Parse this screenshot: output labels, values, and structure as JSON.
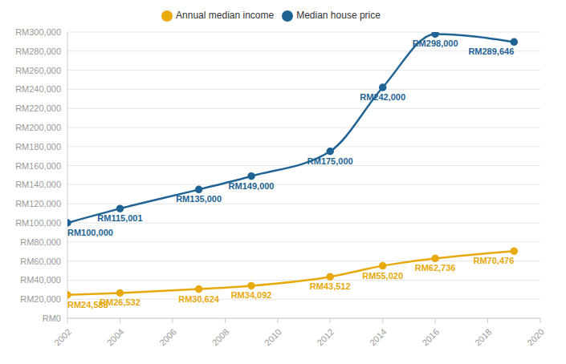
{
  "chart_data": {
    "type": "line",
    "x": [
      2002,
      2004,
      2007,
      2009,
      2012,
      2014,
      2016,
      2019
    ],
    "series": [
      {
        "name": "Median house price",
        "color": "#1f6394",
        "marker": "circle",
        "values": [
          100000,
          115001,
          135000,
          149000,
          175000,
          242000,
          298000,
          289646
        ],
        "value_labels": [
          "RM100,000",
          "RM115,001",
          "RM135,000",
          "RM149,000",
          "RM175,000",
          "RM242,000",
          "RM298,000",
          "RM289,646"
        ]
      },
      {
        "name": "Annual median income",
        "color": "#e8a90c",
        "marker": "circle",
        "values": [
          24588,
          26532,
          30624,
          34092,
          43512,
          55020,
          62736,
          70476
        ],
        "value_labels": [
          "RM24,588",
          "RM26,532",
          "RM30,624",
          "RM34,092",
          "RM43,512",
          "RM55,020",
          "RM62,736",
          "RM70,476"
        ]
      }
    ],
    "xlim": [
      2002,
      2020
    ],
    "xticks": [
      2002,
      2004,
      2006,
      2008,
      2010,
      2012,
      2014,
      2016,
      2018,
      2020
    ],
    "ylim": [
      0,
      300000
    ],
    "yticks": [
      {
        "value": 0,
        "label": "RM0"
      },
      {
        "value": 20000,
        "label": "RM20,000"
      },
      {
        "value": 40000,
        "label": "RM40,000"
      },
      {
        "value": 60000,
        "label": "RM60,000"
      },
      {
        "value": 80000,
        "label": "RM80,000"
      },
      {
        "value": 100000,
        "label": "RM100,000"
      },
      {
        "value": 120000,
        "label": "RM120,000"
      },
      {
        "value": 140000,
        "label": "RM140,000"
      },
      {
        "value": 160000,
        "label": "RM160,000"
      },
      {
        "value": 180000,
        "label": "RM180,000"
      },
      {
        "value": 200000,
        "label": "RM200,000"
      },
      {
        "value": 220000,
        "label": "RM220,000"
      },
      {
        "value": 240000,
        "label": "RM240,000"
      },
      {
        "value": 260000,
        "label": "RM260,000"
      },
      {
        "value": 280000,
        "label": "RM280,000"
      },
      {
        "value": 300000,
        "label": "RM300,000"
      }
    ],
    "grid": true,
    "legend": "top",
    "data_labels": true
  }
}
